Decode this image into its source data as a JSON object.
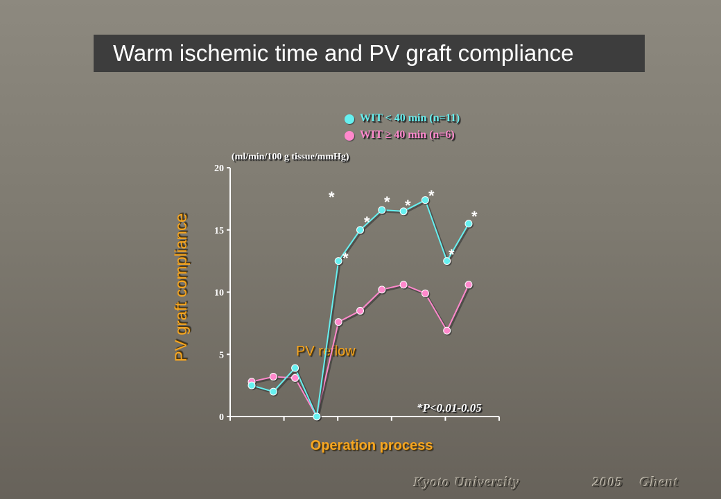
{
  "title": "Warm ischemic time and PV graft compliance",
  "footer": {
    "left": "Kyoto University",
    "right": "2005 Ghent"
  },
  "chart_data": {
    "type": "line",
    "xlabel": "Operation process",
    "ylabel": "PV graft compliance",
    "units": "(ml/min/100  g tissue/mmHg)",
    "ylim": [
      0,
      20
    ],
    "yticks": [
      0,
      5,
      10,
      15,
      20
    ],
    "x": [
      1,
      2,
      3,
      4,
      5,
      6,
      7,
      8,
      9,
      10,
      11
    ],
    "grid": false,
    "legend_position": "top-center",
    "series": [
      {
        "name": "WIT < 40 min (n=11)",
        "color": "#66f0f0",
        "values": [
          2.5,
          2.0,
          3.9,
          0.0,
          12.5,
          15.0,
          16.6,
          16.5,
          17.4,
          12.5,
          15.5
        ]
      },
      {
        "name": "WIT ≥ 40 min (n=6)",
        "color": "#ff88cc",
        "values": [
          2.8,
          3.2,
          3.1,
          0.0,
          7.6,
          8.5,
          10.2,
          10.6,
          9.9,
          6.9,
          10.6
        ]
      }
    ],
    "annotations": {
      "reflow": "PV reflow",
      "significance": "*P<0.01-0.05",
      "star": "*"
    }
  },
  "colors": {
    "axis": "#ffffff",
    "label_accent": "#f5a623"
  }
}
